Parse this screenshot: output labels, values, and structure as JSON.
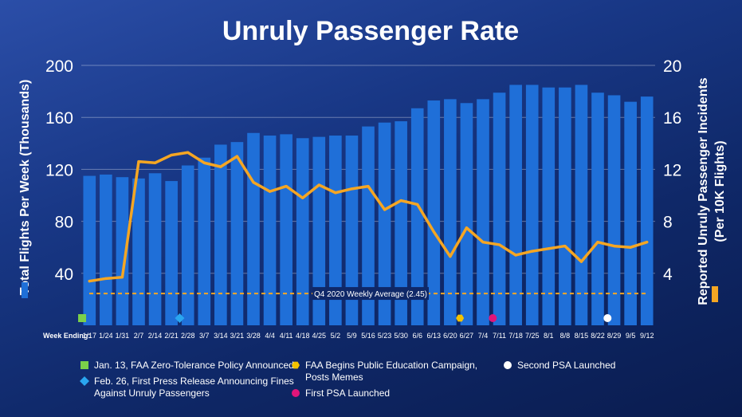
{
  "chart_data": {
    "type": "bar+line",
    "title": "Unruly Passenger Rate",
    "y_left_label": "Total Flights Per Week (Thousands)",
    "y_right_label_line1": "Reported Unruly Passenger Incidents",
    "y_right_label_line2": "(Per 10K Flights)",
    "x_axis_prefix": "Week Ending:",
    "y_left_ticks": [
      "40",
      "80",
      "120",
      "160",
      "200"
    ],
    "y_right_ticks": [
      "4",
      "8",
      "12",
      "16",
      "20"
    ],
    "y_left_range": [
      0,
      200
    ],
    "y_right_range": [
      0,
      20
    ],
    "categories": [
      "1/17",
      "1/24",
      "1/31",
      "2/7",
      "2/14",
      "2/21",
      "2/28",
      "3/7",
      "3/14",
      "3/21",
      "3/28",
      "4/4",
      "4/11",
      "4/18",
      "4/25",
      "5/2",
      "5/9",
      "5/16",
      "5/23",
      "5/30",
      "6/6",
      "6/13",
      "6/20",
      "6/27",
      "7/4",
      "7/11",
      "7/18",
      "7/25",
      "8/1",
      "8/8",
      "8/15",
      "8/22",
      "8/29",
      "9/5",
      "9/12"
    ],
    "series": [
      {
        "kind": "bar",
        "axis": "left",
        "color": "#1f6fd8",
        "values": [
          115,
          116,
          114,
          113,
          117,
          111,
          123,
          129,
          139,
          141,
          148,
          146,
          147,
          144,
          145,
          146,
          146,
          153,
          156,
          157,
          167,
          173,
          174,
          171,
          174,
          179,
          185,
          185,
          183,
          183,
          185,
          179,
          177,
          172,
          176
        ]
      },
      {
        "kind": "line",
        "axis": "right",
        "color": "#f5a623",
        "values": [
          3.4,
          3.6,
          3.7,
          12.6,
          12.5,
          13.1,
          13.3,
          12.5,
          12.2,
          13.0,
          11.0,
          10.3,
          10.7,
          9.8,
          10.8,
          10.2,
          10.5,
          10.7,
          8.9,
          9.6,
          9.3,
          7.2,
          5.3,
          7.5,
          6.4,
          6.2,
          5.4,
          5.7,
          5.9,
          6.1,
          4.9,
          6.4,
          6.1,
          6.0,
          6.4
        ]
      }
    ],
    "reference_line": {
      "label": "Q4 2020 Weekly Average (2.45)",
      "value": 2.45,
      "axis": "right",
      "color": "#f5a623"
    },
    "event_markers": [
      {
        "after_category": "1/17",
        "position": "before",
        "shape": "square",
        "color": "#7bd04a"
      },
      {
        "category": "2/28",
        "position": "before",
        "shape": "diamond",
        "color": "#2aa6f0"
      },
      {
        "category": "6/27",
        "position": "on",
        "shape": "hexagon",
        "color": "#f2c200"
      },
      {
        "category": "7/11",
        "position": "on",
        "shape": "circle",
        "color": "#e0157a"
      },
      {
        "category": "8/29",
        "position": "on",
        "shape": "circle",
        "color": "#ffffff"
      }
    ],
    "grid": true
  },
  "legend": {
    "items": [
      {
        "label": "Jan. 13, FAA Zero-Tolerance Policy Announced",
        "shape": "square",
        "color": "#7bd04a"
      },
      {
        "label": "Feb. 26, First Press Release Announcing Fines",
        "label2": "Against Unruly Passengers",
        "shape": "diamond",
        "color": "#2aa6f0"
      },
      {
        "label": "FAA Begins Public Education Campaign,",
        "label2": "Posts Memes",
        "shape": "hexagon",
        "color": "#f2c200"
      },
      {
        "label": "First PSA Launched",
        "shape": "circle",
        "color": "#e0157a"
      },
      {
        "label": "Second PSA Launched",
        "shape": "circle",
        "color": "#ffffff"
      }
    ]
  }
}
